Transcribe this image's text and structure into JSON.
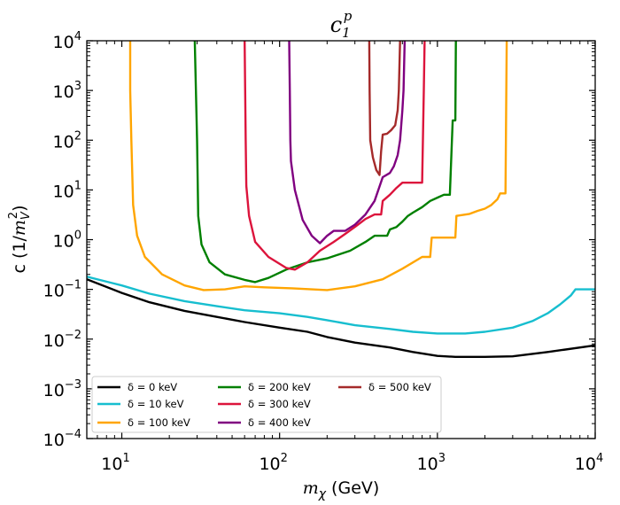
{
  "chart_data": {
    "type": "line",
    "title": "c_1^p",
    "title_main": "c",
    "title_sub": "1",
    "title_sup": "p",
    "xlabel": "m_χ (GeV)",
    "xlabel_sym": "m",
    "xlabel_sub": "χ",
    "xlabel_unit": " (GeV)",
    "ylabel": "c (1/m_V^2)",
    "ylabel_pre": "c (1/",
    "ylabel_m": "m",
    "ylabel_sub": "V",
    "ylabel_sup": "2",
    "ylabel_post": ")",
    "xscale": "log",
    "yscale": "log",
    "xlim": [
      6,
      10000
    ],
    "ylim": [
      0.0001,
      10000
    ],
    "x_ticks": [
      {
        "value": 10,
        "base": "10",
        "exp": "1"
      },
      {
        "value": 100,
        "base": "10",
        "exp": "2"
      },
      {
        "value": 1000,
        "base": "10",
        "exp": "3"
      },
      {
        "value": 10000,
        "base": "10",
        "exp": "4"
      }
    ],
    "y_ticks": [
      {
        "value": 0.0001,
        "base": "10",
        "exp": "−4"
      },
      {
        "value": 0.001,
        "base": "10",
        "exp": "−3"
      },
      {
        "value": 0.01,
        "base": "10",
        "exp": "−2"
      },
      {
        "value": 0.1,
        "base": "10",
        "exp": "−1"
      },
      {
        "value": 1,
        "base": "10",
        "exp": "0"
      },
      {
        "value": 10,
        "base": "10",
        "exp": "1"
      },
      {
        "value": 100,
        "base": "10",
        "exp": "2"
      },
      {
        "value": 1000,
        "base": "10",
        "exp": "3"
      },
      {
        "value": 10000,
        "base": "10",
        "exp": "4"
      }
    ],
    "legend_position": "lower-left",
    "series": [
      {
        "name": "δ = 0 keV",
        "color": "#000000",
        "points": [
          [
            6,
            0.16
          ],
          [
            10,
            0.085
          ],
          [
            15,
            0.055
          ],
          [
            25,
            0.037
          ],
          [
            40,
            0.028
          ],
          [
            60,
            0.022
          ],
          [
            100,
            0.017
          ],
          [
            150,
            0.014
          ],
          [
            200,
            0.011
          ],
          [
            300,
            0.0085
          ],
          [
            500,
            0.0068
          ],
          [
            700,
            0.0055
          ],
          [
            1000,
            0.0046
          ],
          [
            1300,
            0.0044
          ],
          [
            2000,
            0.0044
          ],
          [
            3000,
            0.0045
          ],
          [
            5000,
            0.0055
          ],
          [
            10000,
            0.0075
          ]
        ]
      },
      {
        "name": "δ = 10 keV",
        "color": "#17becf",
        "points": [
          [
            6,
            0.18
          ],
          [
            10,
            0.12
          ],
          [
            15,
            0.082
          ],
          [
            25,
            0.058
          ],
          [
            40,
            0.046
          ],
          [
            60,
            0.038
          ],
          [
            100,
            0.033
          ],
          [
            150,
            0.028
          ],
          [
            200,
            0.024
          ],
          [
            300,
            0.019
          ],
          [
            500,
            0.016
          ],
          [
            700,
            0.014
          ],
          [
            1000,
            0.013
          ],
          [
            1500,
            0.013
          ],
          [
            2000,
            0.014
          ],
          [
            3000,
            0.017
          ],
          [
            4000,
            0.023
          ],
          [
            5000,
            0.033
          ],
          [
            6000,
            0.05
          ],
          [
            7000,
            0.075
          ],
          [
            7500,
            0.1
          ],
          [
            10000,
            0.1
          ]
        ]
      },
      {
        "name": "δ = 100 keV",
        "color": "#ffa500",
        "points": [
          [
            11.3,
            10000
          ],
          [
            11.3,
            1000
          ],
          [
            11.5,
            100
          ],
          [
            11.8,
            5
          ],
          [
            12.5,
            1.2
          ],
          [
            14,
            0.45
          ],
          [
            18,
            0.2
          ],
          [
            25,
            0.12
          ],
          [
            33,
            0.097
          ],
          [
            45,
            0.1
          ],
          [
            60,
            0.115
          ],
          [
            80,
            0.11
          ],
          [
            120,
            0.105
          ],
          [
            200,
            0.097
          ],
          [
            300,
            0.115
          ],
          [
            450,
            0.16
          ],
          [
            600,
            0.26
          ],
          [
            800,
            0.45
          ],
          [
            900,
            0.45
          ],
          [
            920,
            1.1
          ],
          [
            1300,
            1.1
          ],
          [
            1320,
            3
          ],
          [
            1600,
            3.3
          ],
          [
            1800,
            3.8
          ],
          [
            2000,
            4.2
          ],
          [
            2200,
            5
          ],
          [
            2400,
            6.5
          ],
          [
            2500,
            8.5
          ],
          [
            2700,
            8.5
          ],
          [
            2750,
            10000
          ]
        ]
      },
      {
        "name": "δ = 200 keV",
        "color": "#008000",
        "points": [
          [
            29,
            10000
          ],
          [
            29.5,
            1000
          ],
          [
            30,
            100
          ],
          [
            30.5,
            3
          ],
          [
            32,
            0.8
          ],
          [
            36,
            0.35
          ],
          [
            45,
            0.2
          ],
          [
            60,
            0.155
          ],
          [
            70,
            0.14
          ],
          [
            85,
            0.17
          ],
          [
            110,
            0.25
          ],
          [
            150,
            0.35
          ],
          [
            200,
            0.42
          ],
          [
            280,
            0.6
          ],
          [
            350,
            0.9
          ],
          [
            400,
            1.2
          ],
          [
            480,
            1.2
          ],
          [
            500,
            1.6
          ],
          [
            550,
            1.8
          ],
          [
            600,
            2.3
          ],
          [
            650,
            3
          ],
          [
            700,
            3.5
          ],
          [
            800,
            4.5
          ],
          [
            900,
            6
          ],
          [
            1000,
            7
          ],
          [
            1100,
            8
          ],
          [
            1200,
            8
          ],
          [
            1250,
            250
          ],
          [
            1300,
            250
          ],
          [
            1310,
            10000
          ]
        ]
      },
      {
        "name": "δ = 300 keV",
        "color": "#dc143c",
        "points": [
          [
            60,
            10000
          ],
          [
            60.5,
            1000
          ],
          [
            61,
            100
          ],
          [
            61.5,
            12
          ],
          [
            64,
            3
          ],
          [
            70,
            0.9
          ],
          [
            85,
            0.45
          ],
          [
            110,
            0.27
          ],
          [
            125,
            0.25
          ],
          [
            150,
            0.35
          ],
          [
            180,
            0.6
          ],
          [
            220,
            0.9
          ],
          [
            260,
            1.3
          ],
          [
            300,
            1.8
          ],
          [
            350,
            2.6
          ],
          [
            400,
            3.2
          ],
          [
            440,
            3.2
          ],
          [
            450,
            6
          ],
          [
            500,
            8
          ],
          [
            550,
            11
          ],
          [
            600,
            14
          ],
          [
            700,
            14
          ],
          [
            800,
            14
          ],
          [
            820,
            1000
          ],
          [
            830,
            10000
          ]
        ]
      },
      {
        "name": "δ = 400 keV",
        "color": "#800080",
        "points": [
          [
            115,
            10000
          ],
          [
            116,
            1000
          ],
          [
            117,
            100
          ],
          [
            118,
            38
          ],
          [
            125,
            10
          ],
          [
            140,
            2.5
          ],
          [
            160,
            1.2
          ],
          [
            180,
            0.85
          ],
          [
            200,
            1.2
          ],
          [
            220,
            1.5
          ],
          [
            260,
            1.5
          ],
          [
            300,
            2
          ],
          [
            350,
            3.2
          ],
          [
            400,
            6
          ],
          [
            450,
            18
          ],
          [
            500,
            22
          ],
          [
            530,
            30
          ],
          [
            560,
            50
          ],
          [
            580,
            100
          ],
          [
            600,
            400
          ],
          [
            610,
            1000
          ],
          [
            620,
            10000
          ]
        ]
      },
      {
        "name": "δ = 500 keV",
        "color": "#a52a2a",
        "points": [
          [
            370,
            10000
          ],
          [
            372,
            1000
          ],
          [
            375,
            100
          ],
          [
            390,
            45
          ],
          [
            410,
            25
          ],
          [
            430,
            20
          ],
          [
            440,
            60
          ],
          [
            450,
            130
          ],
          [
            480,
            135
          ],
          [
            510,
            160
          ],
          [
            540,
            200
          ],
          [
            560,
            400
          ],
          [
            570,
            1000
          ],
          [
            580,
            10000
          ]
        ]
      }
    ]
  }
}
